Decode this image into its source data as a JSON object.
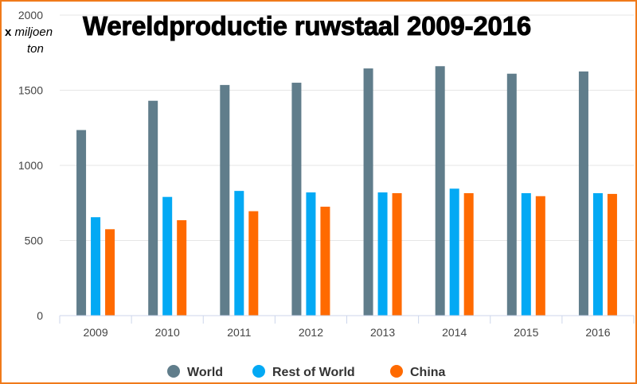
{
  "chart_data": {
    "type": "bar",
    "title": "Wereldproductie ruwstaal 2009-2016",
    "ylabel_prefix": "x",
    "ylabel_unit_1": "miljoen",
    "ylabel_unit_2": "ton",
    "categories": [
      "2009",
      "2010",
      "2011",
      "2012",
      "2013",
      "2014",
      "2015",
      "2016"
    ],
    "series": [
      {
        "name": "World",
        "color": "#607d8b",
        "values": [
          1235,
          1430,
          1535,
          1550,
          1645,
          1660,
          1610,
          1625
        ]
      },
      {
        "name": "Rest of World",
        "color": "#03a9f4",
        "values": [
          655,
          790,
          830,
          820,
          820,
          845,
          815,
          815
        ]
      },
      {
        "name": "China",
        "color": "#ff6a00",
        "values": [
          575,
          635,
          695,
          725,
          815,
          815,
          795,
          810
        ]
      }
    ],
    "ylim": [
      0,
      2000
    ],
    "yticks": [
      "0",
      "500",
      "1000",
      "1500",
      "2000"
    ],
    "grid": true,
    "legend_position": "bottom-center"
  }
}
